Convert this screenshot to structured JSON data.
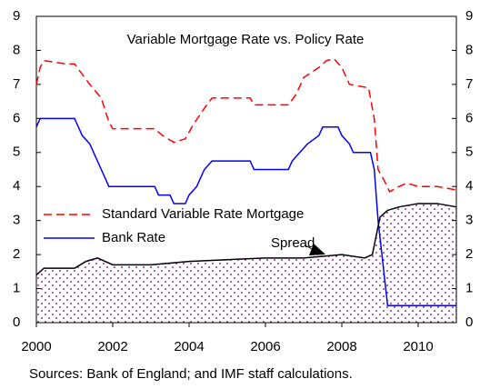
{
  "chart_data": {
    "type": "line",
    "title": "Variable Mortgage Rate vs. Policy Rate",
    "note": "Sources: Bank of England; and IMF staff calculations.",
    "annotation": "Spread",
    "xlim": [
      2000,
      2011
    ],
    "xticks": [
      2000,
      2002,
      2004,
      2006,
      2008,
      2010
    ],
    "ylim": [
      0,
      9
    ],
    "yticks": [
      0,
      1,
      2,
      3,
      4,
      5,
      6,
      7,
      8,
      9
    ],
    "y2lim": [
      0,
      9
    ],
    "y2ticks": [
      0,
      1,
      2,
      3,
      4,
      5,
      6,
      7,
      8,
      9
    ],
    "series": [
      {
        "name": "Standard Variable Rate  Mortgage",
        "color": "#ff0000",
        "style": "dashed",
        "x": [
          2000,
          2000.1,
          2000.2,
          2000.8,
          2001.0,
          2001.2,
          2001.4,
          2001.7,
          2001.9,
          2002.0,
          2003.1,
          2003.3,
          2003.6,
          2003.9,
          2004.1,
          2004.4,
          2004.6,
          2005.6,
          2005.7,
          2006.6,
          2006.8,
          2007.0,
          2007.4,
          2007.6,
          2007.8,
          2008.0,
          2008.2,
          2008.7,
          2008.85,
          2008.95,
          2009.1,
          2009.25,
          2009.5,
          2009.7,
          2010.0,
          2010.5,
          2011
        ],
        "values": [
          7.0,
          7.5,
          7.7,
          7.6,
          7.6,
          7.3,
          7.0,
          6.6,
          5.9,
          5.7,
          5.7,
          5.5,
          5.3,
          5.4,
          5.8,
          6.3,
          6.6,
          6.6,
          6.4,
          6.4,
          6.7,
          7.2,
          7.5,
          7.7,
          7.75,
          7.5,
          7.0,
          6.9,
          6.0,
          4.5,
          4.2,
          3.85,
          4.0,
          4.1,
          4.0,
          4.0,
          3.9
        ]
      },
      {
        "name": "Bank Rate",
        "color": "#0000ff",
        "style": "solid",
        "x": [
          2000,
          2000.1,
          2001.0,
          2001.2,
          2001.4,
          2001.7,
          2001.9,
          2003.1,
          2003.2,
          2003.5,
          2003.6,
          2003.9,
          2004.0,
          2004.2,
          2004.4,
          2004.6,
          2005.6,
          2005.7,
          2006.6,
          2006.7,
          2006.9,
          2007.1,
          2007.4,
          2007.5,
          2007.9,
          2008.0,
          2008.2,
          2008.3,
          2008.75,
          2008.85,
          2008.95,
          2009.1,
          2009.2,
          2011
        ],
        "values": [
          5.75,
          6,
          6,
          5.5,
          5.25,
          4.5,
          4,
          4,
          3.75,
          3.75,
          3.5,
          3.5,
          3.75,
          4,
          4.5,
          4.75,
          4.75,
          4.5,
          4.5,
          4.75,
          5,
          5.25,
          5.5,
          5.75,
          5.75,
          5.5,
          5.25,
          5,
          5,
          4.5,
          3,
          1.5,
          0.5,
          0.5
        ]
      },
      {
        "name": "Spread",
        "color": "#000000",
        "fill": "#993399",
        "x": [
          2000,
          2000.1,
          2000.2,
          2001,
          2001.3,
          2001.6,
          2002,
          2003,
          2003.5,
          2004,
          2005,
          2006,
          2007,
          2007.5,
          2008,
          2008.6,
          2008.8,
          2009.0,
          2009.2,
          2009.5,
          2010,
          2010.5,
          2011
        ],
        "values": [
          1.4,
          1.5,
          1.6,
          1.6,
          1.8,
          1.9,
          1.7,
          1.7,
          1.75,
          1.8,
          1.85,
          1.9,
          1.9,
          1.95,
          2.0,
          1.9,
          2.0,
          3.1,
          3.3,
          3.4,
          3.5,
          3.5,
          3.4
        ]
      }
    ]
  }
}
